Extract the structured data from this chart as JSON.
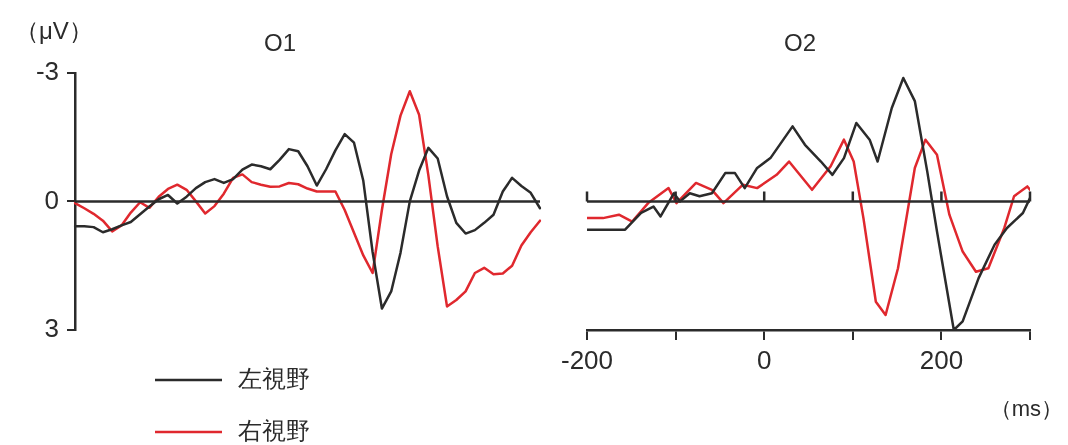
{
  "chart_data": [
    {
      "type": "line",
      "title": "O1",
      "ylabel": "（μV）",
      "categories": [
        null,
        null,
        null,
        null,
        null,
        null,
        null,
        null,
        null,
        null,
        null,
        null,
        null,
        null,
        null,
        null,
        null,
        null,
        null,
        null,
        null,
        null,
        null,
        null,
        null,
        null,
        null,
        null,
        null,
        null,
        null,
        null,
        null,
        null,
        null,
        null,
        null,
        null,
        null,
        null,
        null,
        null,
        null,
        null,
        null,
        null,
        null,
        null,
        null,
        null,
        null
      ],
      "ylim": [
        3,
        -3
      ],
      "yticks": [
        -3,
        0,
        3
      ],
      "tick_labels": "y",
      "legend": "bottom",
      "ref_lines": [
        {
          "axis": "y",
          "value": 0
        }
      ],
      "series": [
        {
          "name": "左視野",
          "color": "#2b2b2b",
          "values": [
            0.58,
            0.58,
            0.6,
            0.72,
            0.65,
            0.56,
            0.48,
            0.3,
            0.12,
            -0.05,
            -0.15,
            0.05,
            -0.11,
            -0.31,
            -0.45,
            -0.52,
            -0.43,
            -0.52,
            -0.74,
            -0.86,
            -0.82,
            -0.75,
            -0.97,
            -1.22,
            -1.17,
            -0.82,
            -0.37,
            -0.75,
            -1.19,
            -1.57,
            -1.37,
            -0.48,
            1.18,
            2.5,
            2.1,
            1.2,
            0,
            -0.72,
            -1.25,
            -1,
            -0.12,
            0.5,
            0.75,
            0.67,
            0.5,
            0.31,
            -0.23,
            -0.55,
            -0.36,
            -0.2,
            0.16
          ]
        },
        {
          "name": "右視野",
          "color": "#e0282e",
          "values": [
            0.04,
            0.16,
            0.29,
            0.45,
            0.7,
            0.56,
            0.26,
            0.02,
            0.15,
            -0.11,
            -0.29,
            -0.39,
            -0.27,
            0,
            0.28,
            0.11,
            -0.18,
            -0.55,
            -0.63,
            -0.45,
            -0.39,
            -0.34,
            -0.35,
            -0.43,
            -0.4,
            -0.3,
            -0.23,
            -0.23,
            -0.23,
            0.2,
            0.73,
            1.26,
            1.67,
            0.2,
            -1.1,
            -2,
            -2.57,
            -2.02,
            -0.6,
            1.05,
            2.45,
            2.3,
            2.1,
            1.67,
            1.55,
            1.7,
            1.68,
            1.5,
            1.03,
            0.72,
            0.45
          ]
        }
      ]
    },
    {
      "type": "line",
      "title": "O2",
      "xlabel": "（ms）",
      "xlim": [
        -200,
        300
      ],
      "xticks": [
        -200,
        {
          "value": -100,
          "label": null
        },
        0,
        {
          "value": 100,
          "label": null
        },
        200,
        {
          "value": 300,
          "label": null
        }
      ],
      "ylim": [
        3,
        -3
      ],
      "tick_labels": "x",
      "ref_lines": [
        {
          "axis": "y",
          "value": 0
        }
      ],
      "series": [
        {
          "color": "#2b2b2b",
          "x": [
            -200,
            -175,
            -157,
            -139,
            -125,
            -117,
            -102,
            -95,
            -84,
            -73,
            -59,
            -44,
            -33,
            -22,
            -8,
            7,
            32,
            46,
            64,
            77,
            90,
            104,
            119,
            128,
            144,
            157,
            170,
            184,
            195,
            214,
            224,
            242,
            260,
            274,
            292,
            300
          ],
          "values": [
            0.66,
            0.66,
            0.66,
            0.27,
            0.12,
            0.35,
            -0.19,
            0,
            -0.19,
            -0.12,
            -0.19,
            -0.66,
            -0.66,
            -0.31,
            -0.78,
            -1.01,
            -1.75,
            -1.32,
            -0.93,
            -0.62,
            -1.01,
            -1.83,
            -1.44,
            -0.93,
            -2.18,
            -2.88,
            -2.34,
            -0.7,
            0.7,
            3.0,
            2.8,
            1.79,
            1.01,
            0.62,
            0.27,
            -0.08
          ]
        },
        {
          "color": "#e0282e",
          "x": [
            -200,
            -182,
            -164,
            -149,
            -131,
            -108,
            -99,
            -77,
            -59,
            -46,
            -24,
            -8,
            14,
            28,
            54,
            75,
            90,
            101,
            112,
            126,
            137,
            151,
            170,
            182,
            195,
            209,
            224,
            239,
            253,
            271,
            282,
            297,
            300
          ],
          "values": [
            0.39,
            0.39,
            0.31,
            0.47,
            0.04,
            -0.31,
            0.04,
            -0.43,
            -0.27,
            0.04,
            -0.39,
            -0.31,
            -0.62,
            -0.93,
            -0.27,
            -0.82,
            -1.44,
            -0.93,
            0.39,
            2.34,
            2.65,
            1.56,
            -0.78,
            -1.44,
            -1.09,
            0.31,
            1.17,
            1.64,
            1.56,
            0.62,
            -0.12,
            -0.35,
            -0.27
          ]
        }
      ]
    }
  ]
}
